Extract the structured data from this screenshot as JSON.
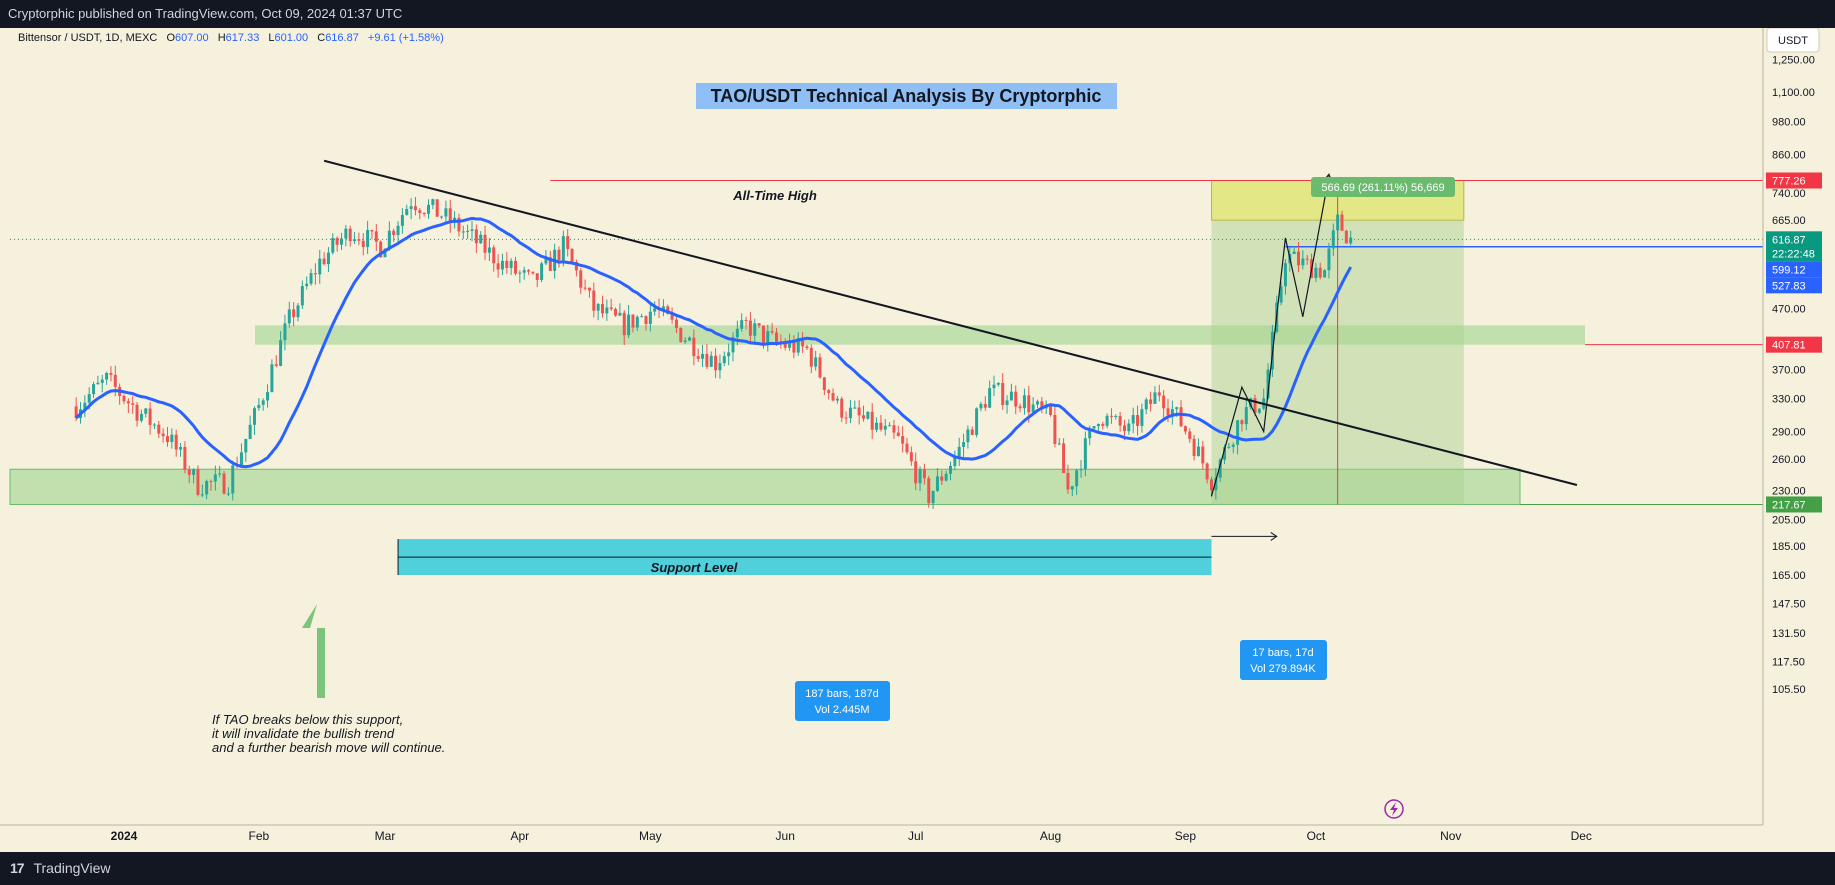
{
  "header": {
    "published_text": "Cryptorphic published on TradingView.com, Oct 09, 2024 01:37 UTC"
  },
  "footer": {
    "brand": "TradingView"
  },
  "legend": {
    "symbol": "Bittensor / USDT, 1D, MEXC",
    "o_label": "O",
    "o_value": "607.00",
    "h_label": "H",
    "h_value": "617.33",
    "l_label": "L",
    "l_value": "601.00",
    "c_label": "C",
    "c_value": "616.87",
    "change": "+9.61 (+1.58%)"
  },
  "currency": "USDT",
  "colors": {
    "background": "#f5f1dc",
    "up": "#26a69a",
    "down": "#ef5350",
    "ma": "#2962ff",
    "zone": "#9fd590",
    "target": "#e4e880",
    "range": "#4fd0db"
  },
  "chart_data": {
    "type": "candlestick",
    "title": "TAO/USDT Technical Analysis By Cryptorphic",
    "y_scale": "log",
    "y_ticks": [
      "1,250.00",
      "1,100.00",
      "980.00",
      "860.00",
      "740.00",
      "665.00",
      "470.00",
      "370.00",
      "330.00",
      "290.00",
      "260.00",
      "230.00",
      "205.00",
      "185.00",
      "165.00",
      "147.50",
      "131.50",
      "117.50",
      "105.50"
    ],
    "x_ticks": [
      "2024",
      "Feb",
      "Mar",
      "Apr",
      "May",
      "Jun",
      "Jul",
      "Aug",
      "Sep",
      "Oct",
      "Nov",
      "Dec"
    ],
    "price_labels": [
      {
        "value": "777.26",
        "color": "#f23645"
      },
      {
        "value": "616.87",
        "color": "#089981"
      },
      {
        "value": "22:22:48",
        "color": "#089981"
      },
      {
        "value": "599.12",
        "color": "#2962ff"
      },
      {
        "value": "527.83",
        "color": "#2962ff"
      },
      {
        "value": "407.81",
        "color": "#f23645"
      },
      {
        "value": "217.67",
        "color": "#43a047"
      }
    ],
    "annotations": {
      "ath": "All-Time High",
      "support": "Support Level",
      "note_line1": "If TAO breaks below this support,",
      "note_line2": "it will invalidate the bullish trend",
      "note_line3": "and a further bearish move will continue.",
      "measure_big_line1": "187 bars, 187d",
      "measure_big_line2": "Vol 2.445M",
      "measure_small_line1": "17 bars, 17d",
      "measure_small_line2": "Vol 279.894K",
      "target_label": "566.69 (261.11%) 56,669"
    },
    "ohlc_anchor": [
      [
        "2023-12-21",
        320
      ],
      [
        "2023-12-28",
        355
      ],
      [
        "2024-01-04",
        315
      ],
      [
        "2024-01-11",
        285
      ],
      [
        "2024-01-18",
        235
      ],
      [
        "2024-01-25",
        238
      ],
      [
        "2024-02-01",
        320
      ],
      [
        "2024-02-08",
        450
      ],
      [
        "2024-02-15",
        565
      ],
      [
        "2024-02-22",
        640
      ],
      [
        "2024-02-29",
        600
      ],
      [
        "2024-03-07",
        720
      ],
      [
        "2024-03-14",
        680
      ],
      [
        "2024-03-21",
        620
      ],
      [
        "2024-03-28",
        560
      ],
      [
        "2024-04-04",
        520
      ],
      [
        "2024-04-11",
        600
      ],
      [
        "2024-04-18",
        470
      ],
      [
        "2024-04-25",
        440
      ],
      [
        "2024-05-02",
        470
      ],
      [
        "2024-05-09",
        420
      ],
      [
        "2024-05-16",
        380
      ],
      [
        "2024-05-23",
        440
      ],
      [
        "2024-05-30",
        410
      ],
      [
        "2024-06-06",
        400
      ],
      [
        "2024-06-13",
        320
      ],
      [
        "2024-06-20",
        300
      ],
      [
        "2024-06-27",
        280
      ],
      [
        "2024-07-04",
        225
      ],
      [
        "2024-07-11",
        270
      ],
      [
        "2024-07-18",
        340
      ],
      [
        "2024-07-25",
        330
      ],
      [
        "2024-08-01",
        305
      ],
      [
        "2024-08-05",
        230
      ],
      [
        "2024-08-12",
        310
      ],
      [
        "2024-08-19",
        290
      ],
      [
        "2024-08-26",
        340
      ],
      [
        "2024-09-02",
        285
      ],
      [
        "2024-09-07",
        240
      ],
      [
        "2024-09-14",
        310
      ],
      [
        "2024-09-19",
        330
      ],
      [
        "2024-09-24",
        580
      ],
      [
        "2024-09-28",
        560
      ],
      [
        "2024-10-03",
        545
      ],
      [
        "2024-10-06",
        660
      ],
      [
        "2024-10-09",
        617
      ]
    ]
  }
}
